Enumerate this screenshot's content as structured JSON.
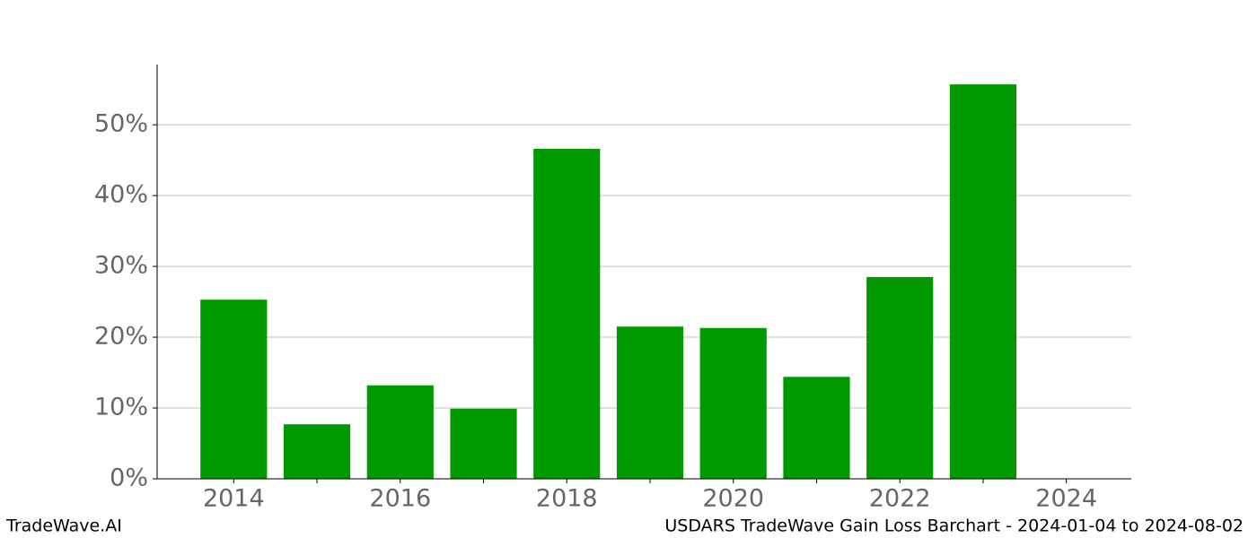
{
  "chart_data": {
    "type": "bar",
    "x": [
      2014,
      2015,
      2016,
      2017,
      2018,
      2019,
      2020,
      2021,
      2022,
      2023
    ],
    "values": [
      25.3,
      7.7,
      13.2,
      9.9,
      46.6,
      21.5,
      21.3,
      14.4,
      28.5,
      55.7
    ],
    "color": "#009900",
    "bar_width": 0.8,
    "xlim": [
      2013.08,
      2024.78
    ],
    "xticks": [
      2014,
      2016,
      2018,
      2020,
      2022,
      2024
    ],
    "xminorticks": [
      2015,
      2017,
      2019,
      2021,
      2023
    ],
    "ylim": [
      0,
      58.5
    ],
    "yticks": [
      {
        "value": 0,
        "label": "0%"
      },
      {
        "value": 10,
        "label": "10%"
      },
      {
        "value": 20,
        "label": "20%"
      },
      {
        "value": 30,
        "label": "30%"
      },
      {
        "value": 40,
        "label": "40%"
      },
      {
        "value": 50,
        "label": "50%"
      }
    ],
    "grid": true,
    "footer_left": "TradeWave.AI",
    "footer_right": "USDARS TradeWave Gain Loss Barchart - 2024-01-04 to 2024-08-02"
  }
}
